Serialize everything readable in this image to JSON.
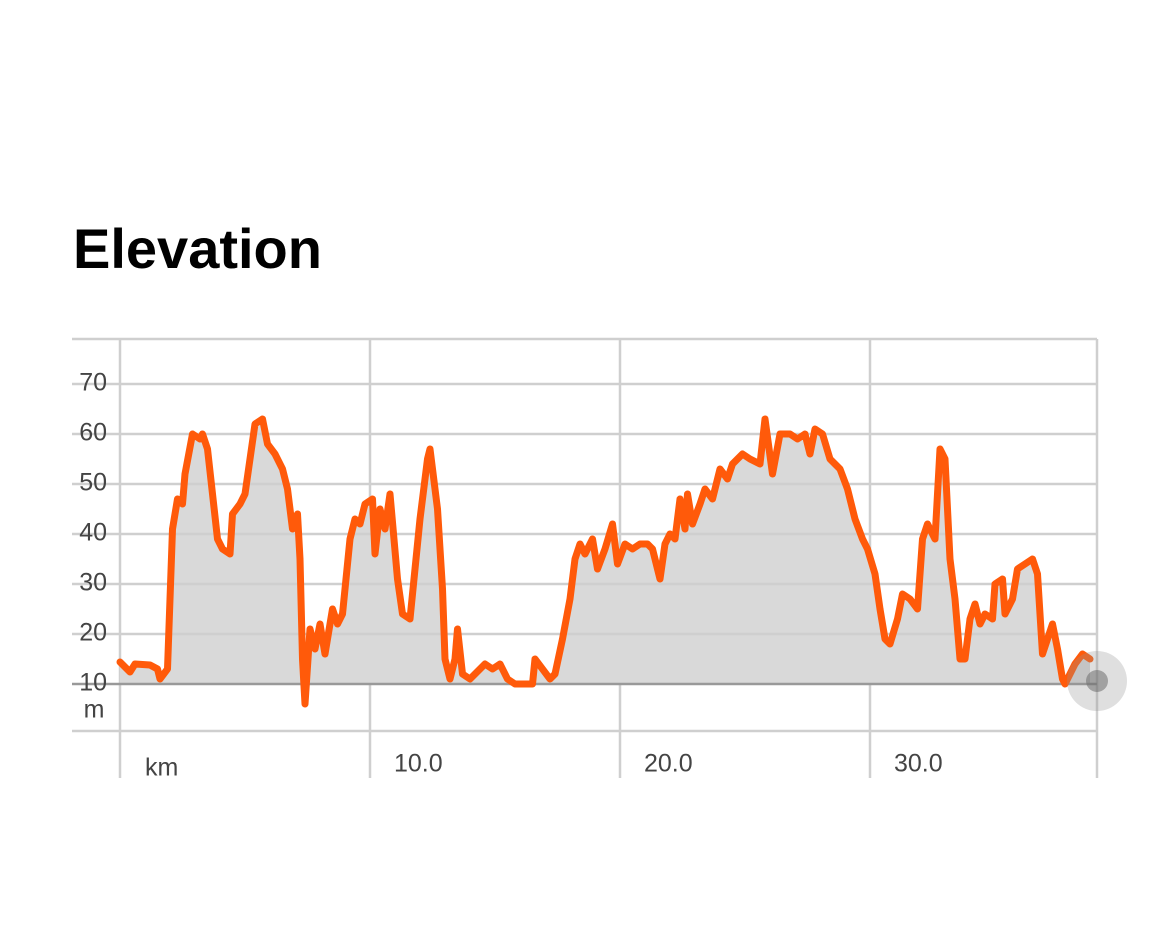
{
  "chart_data": {
    "type": "area",
    "title": "Elevation",
    "x_label": "km",
    "y_label": "m",
    "color": "#ff5a0a",
    "fill": "#d9d9d9",
    "grid": true,
    "xlim": [
      0,
      39.08
    ],
    "ylim": [
      0.6,
      79
    ],
    "xticks": [
      {
        "value": 10,
        "label": "10.0"
      },
      {
        "value": 20,
        "label": "20.0"
      },
      {
        "value": 30,
        "label": "30.0"
      }
    ],
    "yticks": [
      10,
      20,
      30,
      40,
      50,
      60,
      70
    ],
    "x": [
      0,
      0.4,
      0.6,
      1.2,
      1.5,
      1.6,
      1.9,
      2,
      2.1,
      2.3,
      2.5,
      2.6,
      2.9,
      3.2,
      3.3,
      3.5,
      3.7,
      3.9,
      4.1,
      4.4,
      4.5,
      4.8,
      5,
      5.2,
      5.4,
      5.7,
      5.9,
      6.2,
      6.5,
      6.7,
      6.9,
      7.1,
      7.2,
      7.3,
      7.4,
      7.6,
      7.8,
      8,
      8.2,
      8.5,
      8.7,
      8.9,
      9.2,
      9.4,
      9.6,
      9.8,
      10.1,
      10.2,
      10.4,
      10.6,
      10.8,
      11.1,
      11.3,
      11.6,
      11.8,
      12,
      12.3,
      12.4,
      12.7,
      12.9,
      13,
      13.2,
      13.4,
      13.5,
      13.7,
      14,
      14.4,
      14.6,
      14.9,
      15.2,
      15.5,
      15.8,
      16.2,
      16.5,
      16.6,
      16.9,
      17.2,
      17.4,
      17.7,
      18,
      18.2,
      18.4,
      18.6,
      18.9,
      19.1,
      19.4,
      19.7,
      19.9,
      20.2,
      20.5,
      20.8,
      21.1,
      21.3,
      21.6,
      21.8,
      22,
      22.2,
      22.4,
      22.6,
      22.7,
      22.9,
      23.2,
      23.4,
      23.7,
      24,
      24.3,
      24.5,
      24.9,
      25.2,
      25.6,
      25.8,
      26.1,
      26.4,
      26.8,
      27.1,
      27.4,
      27.6,
      27.8,
      28.1,
      28.4,
      28.8,
      29.1,
      29.4,
      29.7,
      29.9,
      30.2,
      30.4,
      30.6,
      30.8,
      31.1,
      31.3,
      31.6,
      31.9,
      32.1,
      32.3,
      32.6,
      32.8,
      33,
      33.2,
      33.4,
      33.6,
      33.8,
      34,
      34.2,
      34.4,
      34.6,
      34.9,
      35,
      35.3,
      35.4,
      35.7,
      35.9,
      36.2,
      36.5,
      36.7,
      36.9,
      37.1,
      37.3,
      37.5,
      37.7,
      37.8,
      38.2,
      38.5,
      38.8
    ],
    "values": [
      14.4,
      12.4,
      14,
      13.8,
      13,
      11,
      13,
      27,
      41,
      47,
      46,
      52,
      60,
      59,
      60,
      57,
      48,
      39,
      37,
      36,
      44,
      46,
      48,
      55,
      62,
      63,
      58,
      56,
      53,
      49,
      41,
      44,
      35,
      15,
      6,
      21,
      17,
      22,
      16,
      25,
      22,
      24,
      39,
      43,
      42,
      46,
      47,
      36,
      45,
      41,
      48,
      31,
      24,
      23,
      33,
      43,
      55,
      57,
      45,
      29,
      15,
      11,
      15,
      21,
      12,
      11,
      13,
      14,
      13,
      14,
      11,
      10,
      10,
      10,
      15,
      13,
      11,
      12,
      19,
      27,
      35,
      38,
      36,
      39,
      33,
      37,
      42,
      34,
      38,
      37,
      38,
      38,
      37,
      31,
      38,
      40,
      39,
      47,
      41,
      48,
      42,
      46,
      49,
      47,
      53,
      51,
      54,
      56,
      55,
      54,
      63,
      52,
      60,
      60,
      59,
      60,
      56,
      61,
      60,
      55,
      53,
      49,
      43,
      39,
      37,
      32,
      25,
      19,
      18,
      23,
      28,
      27,
      25,
      39,
      42,
      39,
      57,
      55,
      35,
      27,
      15,
      15,
      23,
      26,
      22,
      24,
      23,
      30,
      31,
      24,
      27,
      33,
      34,
      35,
      32,
      16,
      19,
      22,
      17,
      11,
      10,
      14,
      16,
      15
    ]
  }
}
